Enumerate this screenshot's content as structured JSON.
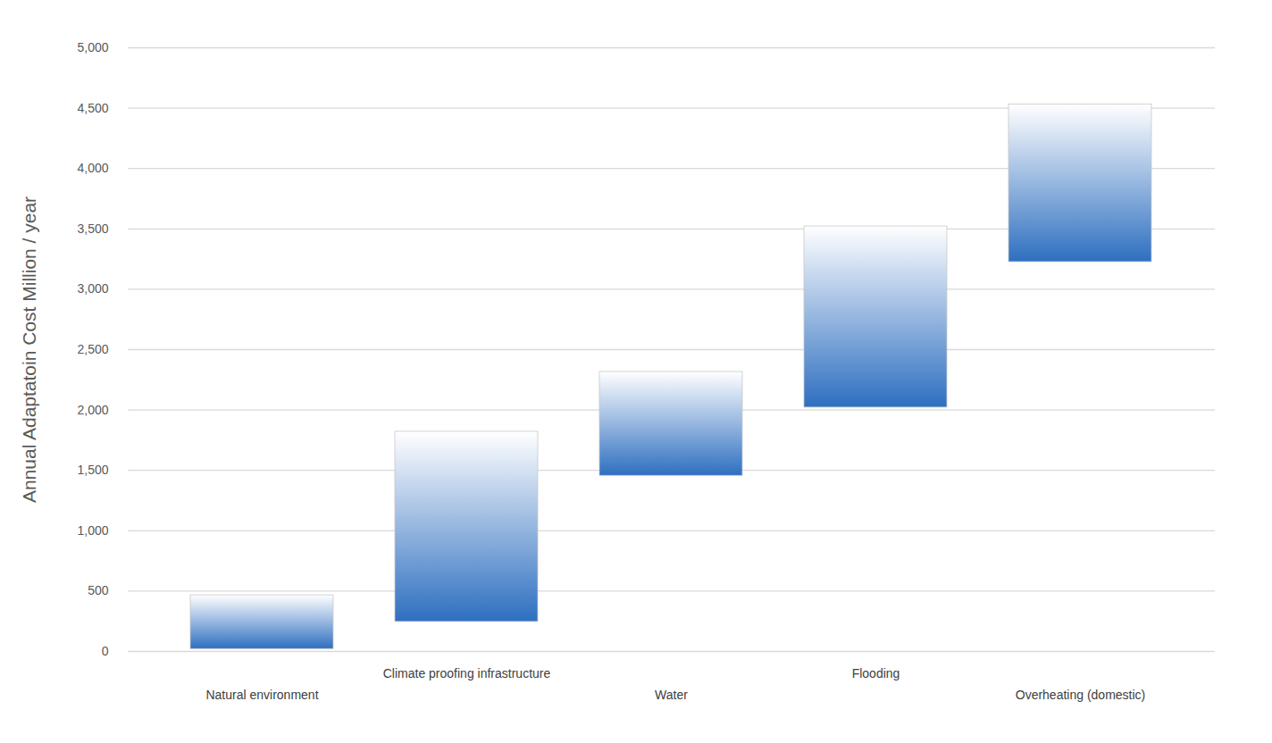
{
  "chart_data": {
    "type": "floating_bar",
    "y_label": "Annual Adaptatoin Cost Million / year",
    "categories": [
      "Natural environment",
      "Climate proofing infrastructure",
      "Water",
      "Flooding",
      "Overheating (domestic)"
    ],
    "low": [
      20,
      245,
      1455,
      2020,
      3225
    ],
    "high": [
      465,
      1820,
      2315,
      3520,
      4530
    ],
    "color": "#2e6fc0",
    "ylim": [
      0,
      5000
    ],
    "yticks": [
      0,
      500,
      1000,
      1500,
      2000,
      2500,
      3000,
      3500,
      4000,
      4500,
      5000
    ],
    "grid": true
  }
}
